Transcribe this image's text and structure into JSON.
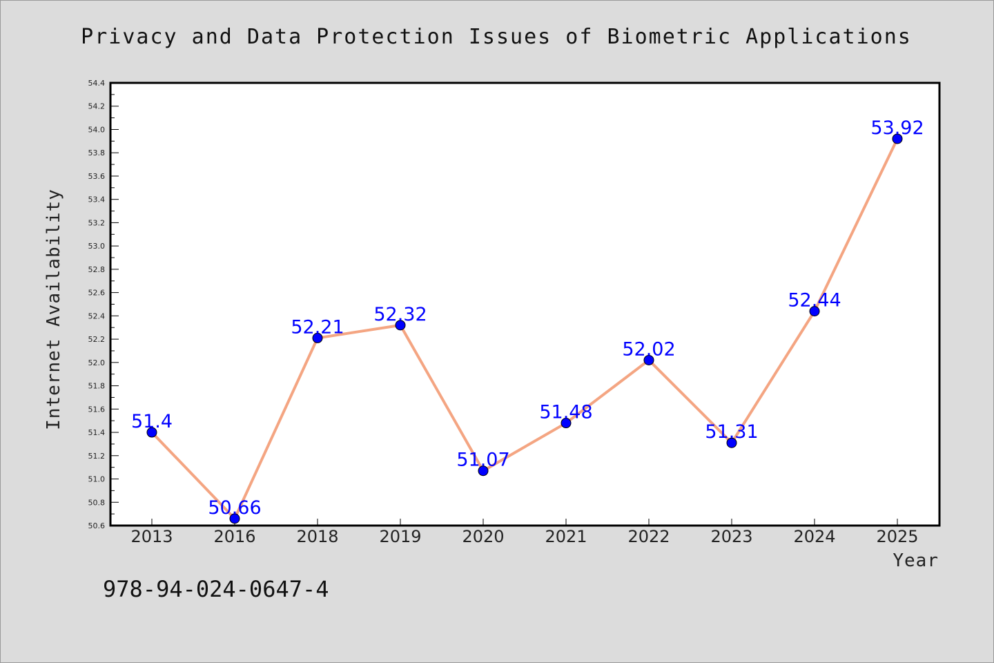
{
  "chart_data": {
    "type": "line",
    "title": "Privacy and Data Protection Issues of Biometric Applications",
    "xlabel": "Year",
    "ylabel": "Internet Availability",
    "categories": [
      "2013",
      "2016",
      "2018",
      "2019",
      "2020",
      "2021",
      "2022",
      "2023",
      "2024",
      "2025"
    ],
    "series": [
      {
        "values": [
          51.4,
          50.66,
          52.21,
          52.32,
          51.07,
          51.48,
          52.02,
          51.31,
          52.44,
          53.92
        ],
        "labels": [
          "51.4",
          "50.66",
          "52.21",
          "52.32",
          "51.07",
          "51.48",
          "52.02",
          "51.31",
          "52.44",
          "53.92"
        ],
        "line_color": "#f4a582",
        "marker_color": "#0000ff"
      }
    ],
    "ylim": [
      50.6,
      54.4
    ],
    "yticks": [
      "50.6",
      "50.8",
      "51.0",
      "51.2",
      "51.4",
      "51.6",
      "51.8",
      "52.0",
      "52.2",
      "52.4",
      "52.6",
      "52.8",
      "53.0",
      "53.2",
      "53.4",
      "53.6",
      "53.8",
      "54.0",
      "54.2",
      "54.4"
    ],
    "grid": false,
    "legend": "none",
    "background_color": "#dcdcdc",
    "plot_background_color": "#ffffff",
    "label_color": "#0000ff"
  },
  "annotation": {
    "isbn": "978-94-024-0647-4"
  }
}
